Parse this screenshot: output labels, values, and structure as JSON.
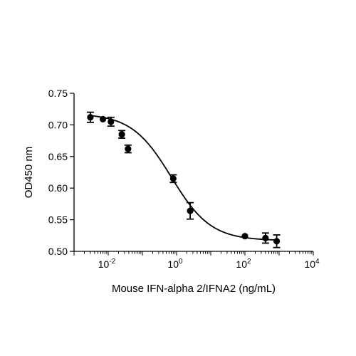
{
  "chart_data": {
    "type": "scatter",
    "xlabel": "Mouse IFN-alpha 2/IFNA2 (ng/mL)",
    "ylabel": "OD450 nm",
    "x_scale": "log10",
    "xlim": [
      0.001,
      10000
    ],
    "ylim": [
      0.5,
      0.75
    ],
    "grid": false,
    "y_ticks": [
      "0.50",
      "0.55",
      "0.60",
      "0.65",
      "0.70",
      "0.75"
    ],
    "x_tick_labels": [
      {
        "base": "10",
        "exp": "-2",
        "value": 0.01
      },
      {
        "base": "10",
        "exp": "0",
        "value": 1
      },
      {
        "base": "10",
        "exp": "2",
        "value": 100
      },
      {
        "base": "10",
        "exp": "4",
        "value": 10000
      }
    ],
    "points": [
      {
        "x": 0.003,
        "y": 0.712,
        "err": 0.008
      },
      {
        "x": 0.007,
        "y": 0.709,
        "err": 0.0
      },
      {
        "x": 0.012,
        "y": 0.705,
        "err": 0.007
      },
      {
        "x": 0.025,
        "y": 0.685,
        "err": 0.006
      },
      {
        "x": 0.038,
        "y": 0.662,
        "err": 0.006
      },
      {
        "x": 0.8,
        "y": 0.615,
        "err": 0.006
      },
      {
        "x": 2.5,
        "y": 0.564,
        "err": 0.013
      },
      {
        "x": 100,
        "y": 0.524,
        "err": 0.0
      },
      {
        "x": 400,
        "y": 0.521,
        "err": 0.008
      },
      {
        "x": 850,
        "y": 0.516,
        "err": 0.01
      }
    ],
    "fit_curve": {
      "model": "4PL",
      "top": 0.718,
      "bottom": 0.517,
      "ec50": 0.7,
      "hill": 0.75
    },
    "colors": {
      "marker": "#000000",
      "line": "#000000",
      "axis": "#000000"
    }
  }
}
